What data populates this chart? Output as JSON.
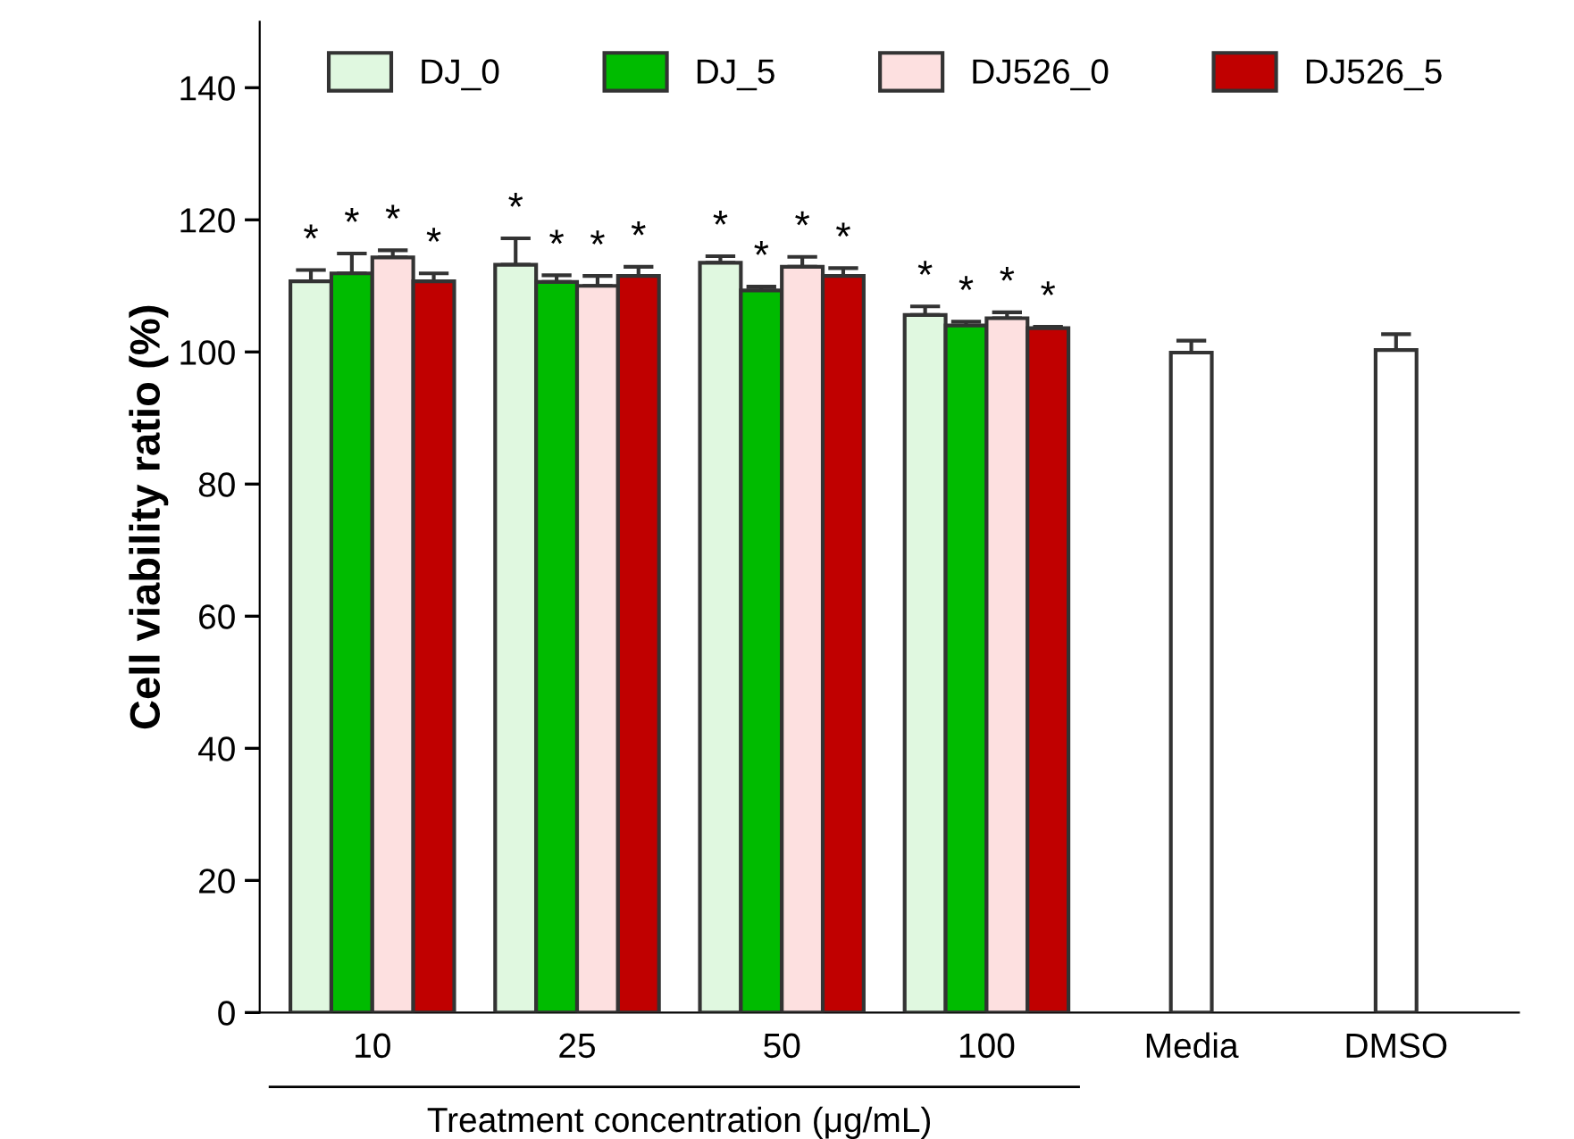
{
  "chart_data": {
    "type": "bar",
    "ylabel": "Cell viability ratio (%)",
    "xlabel": "Treatment concentration (μg/mL)",
    "categories": [
      "10",
      "25",
      "50",
      "100",
      "Media",
      "DMSO"
    ],
    "series": [
      {
        "name": "DJ_0",
        "color": "#e0f8e0",
        "values": [
          110.7,
          113.2,
          113.5,
          105.6,
          null,
          null
        ],
        "errors": [
          1.7,
          4.0,
          1.0,
          1.3,
          null,
          null
        ],
        "value_labels": [
          "*",
          "*",
          "*",
          "*",
          null,
          null
        ]
      },
      {
        "name": "DJ_5",
        "color": "#00bb00",
        "values": [
          111.9,
          110.6,
          109.3,
          104.0,
          null,
          null
        ],
        "errors": [
          3.0,
          1.0,
          0.6,
          0.6,
          null,
          null
        ],
        "value_labels": [
          "*",
          "*",
          "*",
          "*",
          null,
          null
        ]
      },
      {
        "name": "DJ526_0",
        "color": "#fde0e0",
        "values": [
          114.3,
          110.0,
          112.9,
          105.1,
          null,
          null
        ],
        "errors": [
          1.1,
          1.5,
          1.5,
          0.9,
          null,
          null
        ],
        "value_labels": [
          "*",
          "*",
          "*",
          "*",
          null,
          null
        ]
      },
      {
        "name": "DJ526_5",
        "color": "#c00000",
        "values": [
          110.7,
          111.5,
          111.5,
          103.6,
          null,
          null
        ],
        "errors": [
          1.2,
          1.4,
          1.2,
          0.2,
          null,
          null
        ],
        "value_labels": [
          "*",
          "*",
          "*",
          "*",
          null,
          null
        ]
      },
      {
        "color": "#ffffff",
        "values": [
          null,
          null,
          null,
          null,
          99.9,
          100.3
        ],
        "errors": [
          null,
          null,
          null,
          null,
          1.8,
          2.4
        ]
      }
    ],
    "ylim": [
      0,
      150
    ],
    "yticks": [
      0,
      20,
      40,
      60,
      80,
      100,
      120,
      140
    ],
    "legend": "top",
    "grid": false
  }
}
